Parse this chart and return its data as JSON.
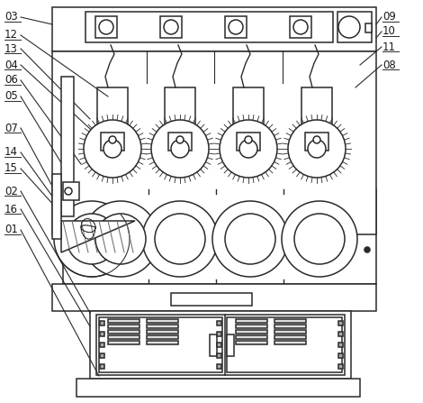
{
  "bg_color": "#ffffff",
  "line_color": "#2a2a2a",
  "lw": 1.1,
  "fig_w": 4.7,
  "fig_h": 4.47
}
